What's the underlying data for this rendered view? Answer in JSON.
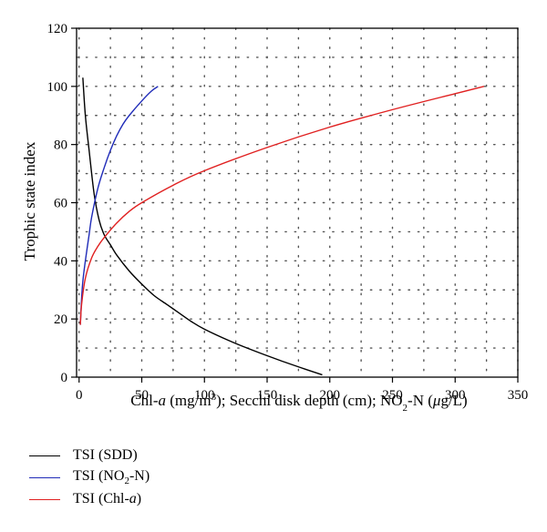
{
  "chart_data": {
    "type": "line",
    "xlabel": "Chl-a (mg/m3); Secchi disk depth (cm); NO2-N (μg/L)",
    "ylabel": "Trophic state index",
    "xlim": [
      -2,
      350
    ],
    "ylim": [
      0,
      120
    ],
    "x_ticks": [
      "0",
      "50",
      "100",
      "150",
      "200",
      "250",
      "300",
      "350"
    ],
    "y_ticks": [
      "0",
      "20",
      "40",
      "60",
      "80",
      "100",
      "120"
    ],
    "grid": "dotted",
    "legend_position": "below",
    "series": [
      {
        "name": "TSI (SDD)",
        "color": "#000000",
        "points": [
          [
            3,
            103
          ],
          [
            5,
            90
          ],
          [
            8,
            78
          ],
          [
            12,
            63
          ],
          [
            16,
            54
          ],
          [
            20,
            49
          ],
          [
            25,
            45.5
          ],
          [
            30,
            42
          ],
          [
            40,
            36.5
          ],
          [
            50,
            32
          ],
          [
            60,
            28
          ],
          [
            70,
            25
          ],
          [
            80,
            22
          ],
          [
            90,
            19
          ],
          [
            100,
            16.5
          ],
          [
            120,
            12.5
          ],
          [
            140,
            9
          ],
          [
            160,
            5.8
          ],
          [
            180,
            2.8
          ],
          [
            194,
            0.8
          ]
        ]
      },
      {
        "name": "TSI (NO2-N)",
        "color": "#1f2bb8",
        "points": [
          [
            1,
            18
          ],
          [
            2,
            27
          ],
          [
            3,
            33
          ],
          [
            5,
            40
          ],
          [
            8,
            49
          ],
          [
            10,
            55
          ],
          [
            15,
            65
          ],
          [
            20,
            72
          ],
          [
            25,
            78
          ],
          [
            30,
            83
          ],
          [
            35,
            87
          ],
          [
            40,
            90
          ],
          [
            50,
            95
          ],
          [
            58,
            98.5
          ],
          [
            63,
            100
          ]
        ]
      },
      {
        "name": "TSI (Chl-a)",
        "color": "#e02020",
        "points": [
          [
            1,
            18
          ],
          [
            2,
            25
          ],
          [
            5,
            34
          ],
          [
            10,
            41
          ],
          [
            15,
            45
          ],
          [
            20,
            48
          ],
          [
            30,
            53
          ],
          [
            40,
            57
          ],
          [
            50,
            60
          ],
          [
            75,
            66
          ],
          [
            100,
            71
          ],
          [
            150,
            79
          ],
          [
            200,
            86
          ],
          [
            250,
            92
          ],
          [
            300,
            97.5
          ],
          [
            323,
            100
          ]
        ]
      }
    ],
    "legend": [
      "TSI (SDD)",
      "TSI (NO2-N)",
      "TSI (Chl-a)"
    ]
  }
}
